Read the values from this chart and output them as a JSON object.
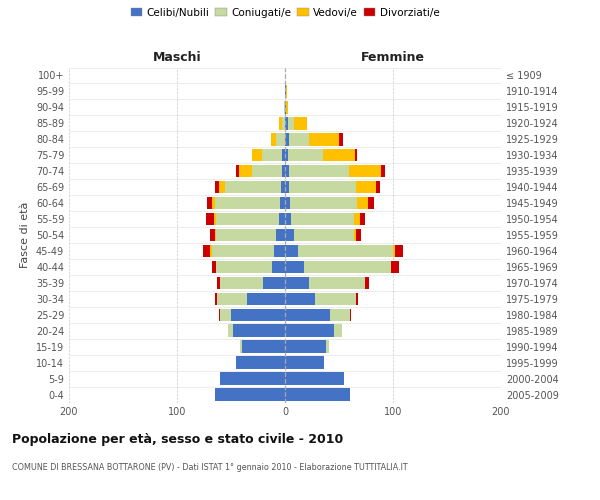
{
  "age_groups": [
    "100+",
    "95-99",
    "90-94",
    "85-89",
    "80-84",
    "75-79",
    "70-74",
    "65-69",
    "60-64",
    "55-59",
    "50-54",
    "45-49",
    "40-44",
    "35-39",
    "30-34",
    "25-29",
    "20-24",
    "15-19",
    "10-14",
    "5-9",
    "0-4"
  ],
  "birth_years": [
    "≤ 1909",
    "1910-1914",
    "1915-1919",
    "1920-1924",
    "1925-1929",
    "1930-1934",
    "1935-1939",
    "1940-1944",
    "1945-1949",
    "1950-1954",
    "1955-1959",
    "1960-1964",
    "1965-1969",
    "1970-1974",
    "1975-1979",
    "1980-1984",
    "1985-1989",
    "1990-1994",
    "1995-1999",
    "2000-2004",
    "2005-2009"
  ],
  "male_celibe": [
    0,
    0,
    0,
    0,
    0,
    3,
    3,
    4,
    5,
    6,
    8,
    10,
    12,
    20,
    35,
    50,
    48,
    40,
    45,
    60,
    65
  ],
  "male_coniugato": [
    0,
    0,
    1,
    3,
    8,
    18,
    28,
    52,
    60,
    58,
    56,
    58,
    52,
    40,
    28,
    10,
    5,
    2,
    0,
    0,
    0
  ],
  "male_vedovo": [
    0,
    0,
    0,
    3,
    5,
    10,
    12,
    5,
    3,
    2,
    1,
    1,
    0,
    0,
    0,
    0,
    0,
    0,
    0,
    0,
    0
  ],
  "male_divorziato": [
    0,
    0,
    0,
    0,
    0,
    0,
    2,
    4,
    4,
    7,
    4,
    7,
    4,
    3,
    2,
    1,
    0,
    0,
    0,
    0,
    0
  ],
  "female_celibe": [
    0,
    1,
    1,
    3,
    4,
    3,
    4,
    4,
    5,
    6,
    8,
    12,
    18,
    22,
    28,
    42,
    45,
    38,
    36,
    55,
    60
  ],
  "female_coniugata": [
    0,
    0,
    0,
    5,
    18,
    32,
    55,
    62,
    62,
    58,
    56,
    88,
    80,
    52,
    38,
    18,
    8,
    3,
    0,
    0,
    0
  ],
  "female_vedova": [
    0,
    1,
    2,
    12,
    28,
    30,
    30,
    18,
    10,
    5,
    2,
    2,
    0,
    0,
    0,
    0,
    0,
    0,
    0,
    0,
    0
  ],
  "female_divorziata": [
    0,
    0,
    0,
    0,
    4,
    2,
    4,
    4,
    5,
    5,
    4,
    7,
    8,
    4,
    2,
    1,
    0,
    0,
    0,
    0,
    0
  ],
  "colors": {
    "celibe": "#4472c4",
    "coniugato": "#c5d9a0",
    "vedovo": "#ffc000",
    "divorziato": "#cc0000"
  },
  "title": "Popolazione per età, sesso e stato civile - 2010",
  "subtitle": "COMUNE DI BRESSANA BOTTARONE (PV) - Dati ISTAT 1° gennaio 2010 - Elaborazione TUTTITALIA.IT",
  "xlabel_left": "Maschi",
  "xlabel_right": "Femmine",
  "ylabel_left": "Fasce di età",
  "xlim": 200,
  "legend_labels": [
    "Celibi/Nubili",
    "Coniugati/e",
    "Vedovi/e",
    "Divorziati/e"
  ],
  "background_color": "#ffffff",
  "grid_color": "#cccccc"
}
